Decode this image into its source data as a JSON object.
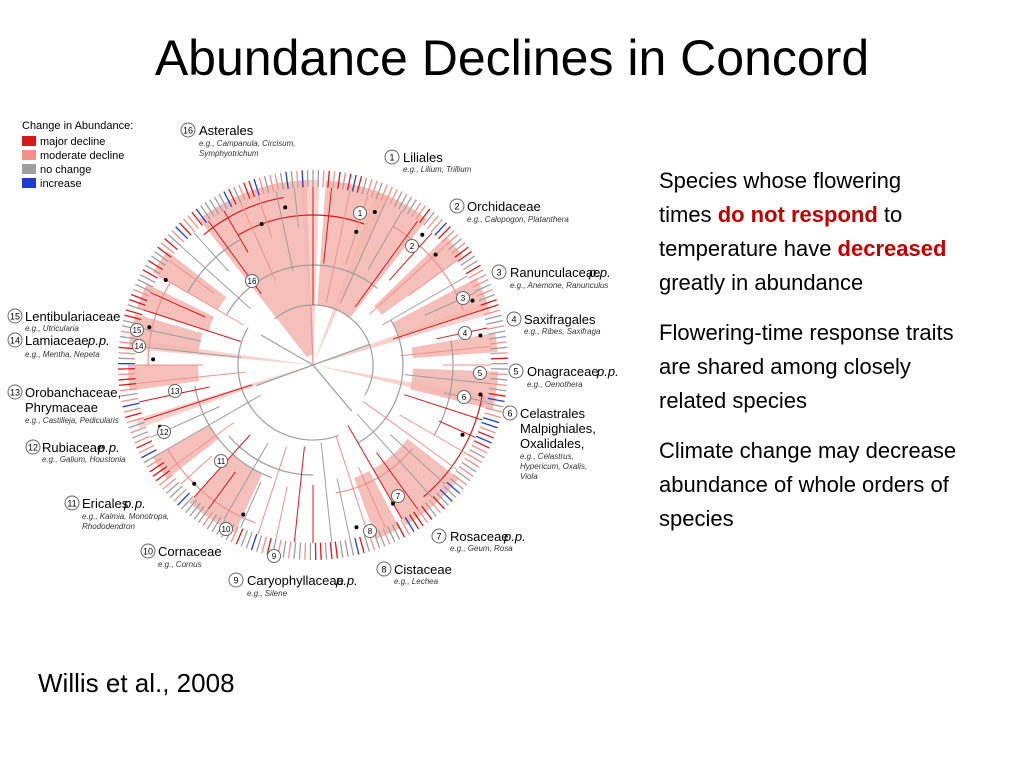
{
  "title": "Abundance Declines in Concord",
  "citation": "Willis et al., 2008",
  "legend": {
    "heading": "Change in Abundance:",
    "items": [
      {
        "label": "major decline",
        "color": "#d7191c"
      },
      {
        "label": "moderate decline",
        "color": "#f2918a"
      },
      {
        "label": "no change",
        "color": "#9e9e9e"
      },
      {
        "label": "increase",
        "color": "#1f3cd6"
      }
    ]
  },
  "bullets": {
    "b1": {
      "t1": "Species whose flowering times ",
      "em1": "do not respond",
      "t2": " to temperature have ",
      "em2": "decreased",
      "t3": " greatly in abundance"
    },
    "b2": "Flowering-time response traits are shared among closely related species",
    "b3": "Climate change may decrease abundance of whole orders of species"
  },
  "clades": [
    {
      "num": "16",
      "name": "Asterales",
      "eg": [
        "e.g., Campanula, Circisum,",
        "Symphyotrichum"
      ]
    },
    {
      "num": "1",
      "name": "Liliales",
      "eg": [
        "e.g., Lilium, Trillium"
      ]
    },
    {
      "num": "2",
      "name": "Orchidaceae",
      "eg": [
        "e.g., Calopogon, Platanthera"
      ]
    },
    {
      "num": "3",
      "name": "Ranunculaceae",
      "pp": "p.p.",
      "eg": [
        "e.g., Anemone, Ranunculus"
      ]
    },
    {
      "num": "4",
      "name": "Saxifragales",
      "eg": [
        "e.g., Ribes, Saxifraga"
      ]
    },
    {
      "num": "5",
      "name": "Onagraceae",
      "pp": "p.p.",
      "eg": [
        "e.g., Oenothera"
      ]
    },
    {
      "num": "6",
      "name": "Celastrales",
      "name2": "Malpighiales,",
      "name3": "Oxalidales,",
      "eg": [
        "e.g., Celastrus,",
        "Hypericum, Oxalis,",
        "Viola"
      ]
    },
    {
      "num": "7",
      "name": "Rosaceae",
      "pp": "p.p.",
      "eg": [
        "e.g., Geum, Rosa"
      ]
    },
    {
      "num": "8",
      "name": "Cistaceae",
      "eg": [
        "e.g., Lechea"
      ]
    },
    {
      "num": "9",
      "name": "Caryophyllaceae",
      "pp": "p.p.",
      "eg": [
        "e.g., Silene"
      ]
    },
    {
      "num": "10",
      "name": "Cornaceae",
      "eg": [
        "e.g., Cornus"
      ]
    },
    {
      "num": "11",
      "name": "Ericales",
      "pp": "p.p.",
      "eg": [
        "e.g., Kalmia, Monotropa,",
        "Rhododendron"
      ]
    },
    {
      "num": "12",
      "name": "Rubiaceae",
      "pp": "p.p.",
      "eg": [
        "e.g., Galium, Houstonia"
      ]
    },
    {
      "num": "13",
      "name": "Orobanchaceae,",
      "name2": "Phrymaceae",
      "eg": [
        "e.g., Castilleja, Pedicularis"
      ]
    },
    {
      "num": "14",
      "name": "Lamiaceae",
      "pp": "p.p.",
      "eg": [
        "e.g., Mentha, Nepeta"
      ]
    },
    {
      "num": "15",
      "name": "Lentibulariaceae",
      "eg": [
        "e.g., Utricularia"
      ]
    }
  ],
  "inner_markers": [
    "16",
    "1",
    "2",
    "3",
    "4",
    "5",
    "6",
    "7",
    "8",
    "9",
    "10",
    "11",
    "12",
    "13",
    "14",
    "15"
  ]
}
